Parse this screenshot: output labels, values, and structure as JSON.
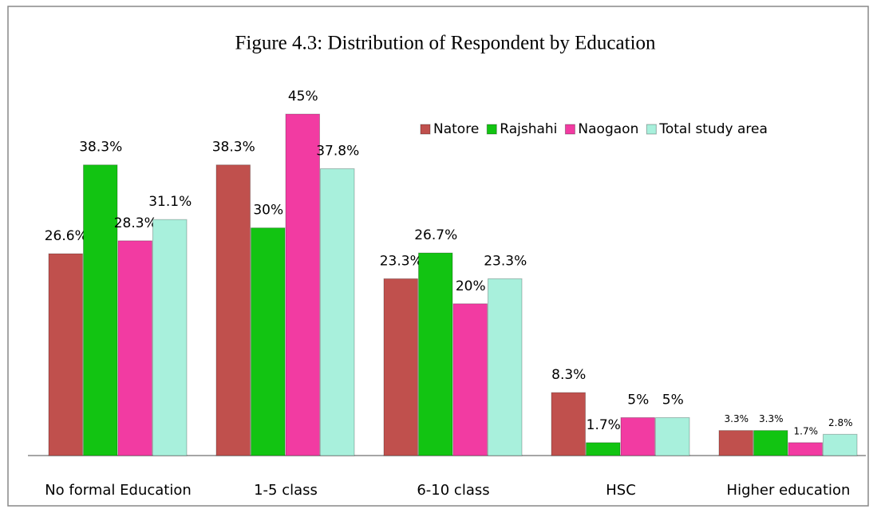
{
  "chart_data": {
    "type": "bar",
    "title": "Figure 4.3: Distribution of Respondent by Education",
    "categories": [
      "No formal Education",
      "1-5 class",
      "6-10 class",
      "HSC",
      "Higher education"
    ],
    "series": [
      {
        "name": "Natore",
        "color": "#c0504d",
        "values": [
          26.6,
          38.3,
          23.3,
          8.3,
          3.3
        ],
        "value_labels": [
          "26.6%",
          "38.3%",
          "23.3%",
          "8.3%",
          "3.3%"
        ]
      },
      {
        "name": "Rajshahi",
        "color": "#12c412",
        "values": [
          38.3,
          30,
          26.7,
          1.7,
          3.3
        ],
        "value_labels": [
          "38.3%",
          "30%",
          "26.7%",
          "1.7%",
          "3.3%"
        ]
      },
      {
        "name": "Naogaon",
        "color": "#f23ba2",
        "values": [
          28.3,
          45,
          20,
          5,
          1.7
        ],
        "value_labels": [
          "28.3%",
          "45%",
          "20%",
          "5%",
          "1.7%"
        ]
      },
      {
        "name": "Total study area",
        "color": "#a8f0dc",
        "values": [
          31.1,
          37.8,
          23.3,
          5,
          2.8
        ],
        "value_labels": [
          "31.1%",
          "37.8%",
          "23.3%",
          "5%",
          "2.8%"
        ]
      }
    ],
    "legend": "top-right"
  }
}
